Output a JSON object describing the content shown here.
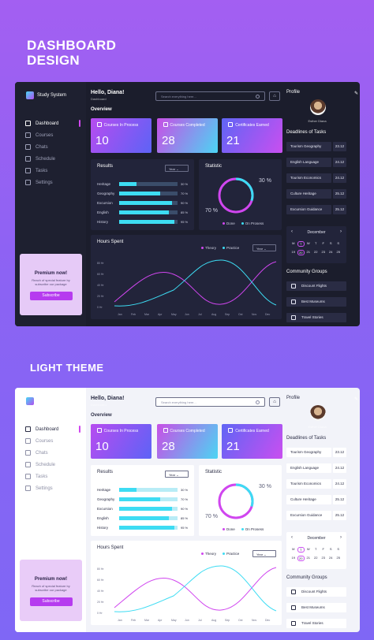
{
  "hero_title_line1": "DASHBOARD",
  "hero_title_line2": "DESIGN",
  "light_theme_title": "LIGHT THEME",
  "app": {
    "brand": "Study System",
    "greeting": "Hello, Diana!",
    "breadcrumb": "Dashboard",
    "search_placeholder": "Search everything here...",
    "overview_label": "Overview",
    "nav": [
      "Dashboard",
      "Courses",
      "Chats",
      "Schedule",
      "Tasks",
      "Settings"
    ],
    "premium": {
      "title": "Premium now!",
      "subtitle": "Reach of special feature by subscribe our package",
      "button": "Subscribe"
    },
    "cards": [
      {
        "title": "Courses In Process",
        "value": "10"
      },
      {
        "title": "Courses Completed",
        "value": "28"
      },
      {
        "title": "Certificates Earned",
        "value": "21"
      }
    ],
    "results": {
      "title": "Results",
      "period": "Year",
      "rows": [
        {
          "label": "Heritage",
          "value": 0.3,
          "text": "30 %"
        },
        {
          "label": "Geography",
          "value": 0.7,
          "text": "70 %"
        },
        {
          "label": "Excursion",
          "value": 0.9,
          "text": "90 %"
        },
        {
          "label": "English",
          "value": 0.85,
          "text": "85 %"
        },
        {
          "label": "History",
          "value": 0.95,
          "text": "95 %"
        }
      ]
    },
    "statistic": {
      "title": "Statistic",
      "done_pct": "70 %",
      "ongoing_pct": "30 %",
      "done_value": 0.7,
      "legend_done": "Done",
      "legend_ongoing": "On Prosess"
    },
    "hours": {
      "title": "Hours Spent",
      "period": "Year",
      "legend_theory": "Theory",
      "legend_practice": "Practice",
      "yticks": [
        "80 Hr",
        "60 Hr",
        "40 Hr",
        "20 Hr",
        "0 Hr"
      ],
      "months": [
        "Jan",
        "Feb",
        "Mar",
        "Apr",
        "May",
        "Jun",
        "Jul",
        "Aug",
        "Sep",
        "Oct",
        "Nov",
        "Dec"
      ]
    },
    "profile": {
      "title": "Profile",
      "name": "Esther Diana"
    },
    "deadlines": {
      "title": "Deadlines of Tasks",
      "items": [
        {
          "name": "Tourism Geography",
          "date": "23.12"
        },
        {
          "name": "English Language",
          "date": "24.12"
        },
        {
          "name": "Tourism Economics",
          "date": "24.12"
        },
        {
          "name": "Culture Heritage",
          "date": "25.12"
        },
        {
          "name": "Excursion Guidance",
          "date": "25.12"
        }
      ]
    },
    "calendar": {
      "month": "December",
      "days": [
        "M",
        "T",
        "W",
        "T",
        "F",
        "S",
        "S"
      ],
      "dates": [
        "19",
        "20",
        "21",
        "22",
        "23",
        "24",
        "25"
      ],
      "selected_index": 1
    },
    "groups": {
      "title": "Community Groups",
      "items": [
        "Discount Flights",
        "Best Museums",
        "Travel Stories"
      ]
    }
  },
  "colors": {
    "accent_pink": "#d046ef",
    "accent_cyan": "#3ddcf3"
  }
}
